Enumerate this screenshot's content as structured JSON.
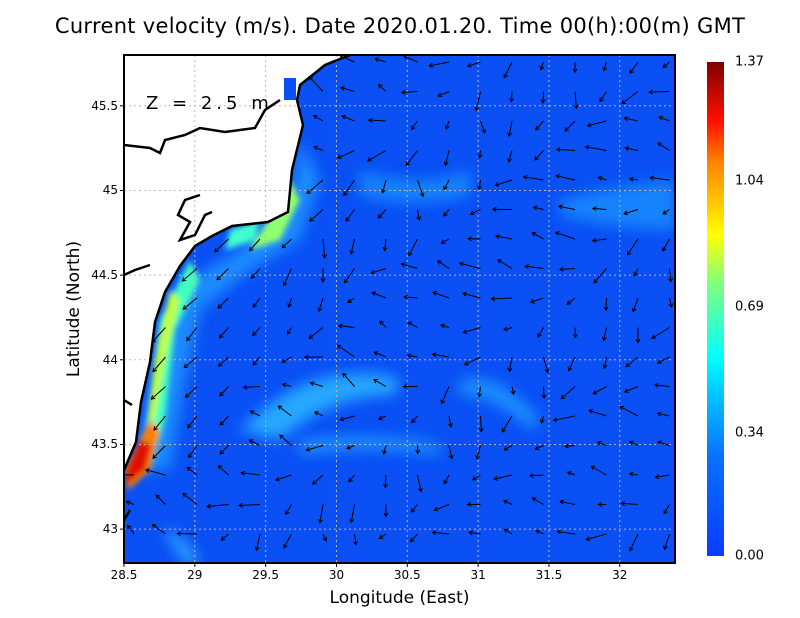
{
  "title": "Current velocity (m/s). Date 2020.01.20. Time 00(h):00(m) GMT",
  "depth_label": "Z = 2.5 m",
  "xlabel": "Longitude (East)",
  "ylabel": "Latitude (North)",
  "x_ticks": [
    "28.5",
    "29",
    "29.5",
    "30",
    "30.5",
    "31",
    "31.5",
    "32"
  ],
  "y_ticks": [
    "43",
    "43.5",
    "44",
    "44.5",
    "45",
    "45.5"
  ],
  "x_range": [
    28.5,
    32.39
  ],
  "y_range": [
    42.8,
    45.8
  ],
  "colorbar": {
    "ticks": [
      "0.00",
      "0.34",
      "0.69",
      "1.04",
      "1.37"
    ],
    "range": [
      0,
      1.37
    ],
    "colors": [
      "#0a3cff",
      "#00a0ff",
      "#00ffff",
      "#7fff7f",
      "#ffff00",
      "#ff8000",
      "#ff0000",
      "#800000"
    ]
  },
  "ocean_color": "#0a50f5",
  "grid": true
}
